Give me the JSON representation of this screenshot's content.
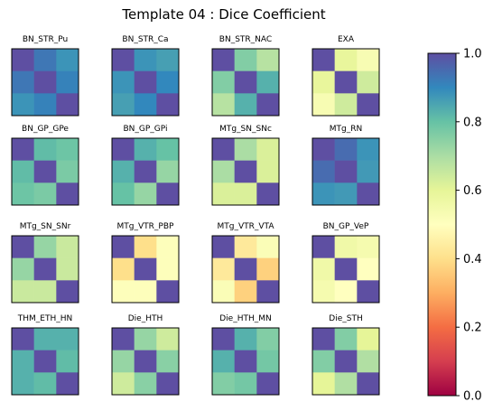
{
  "chart_data": {
    "type": "heatmap",
    "title": "Template 04 : Dice Coefficient",
    "colormap": "Spectral",
    "colorbar": {
      "range": [
        0.0,
        1.0
      ],
      "ticks": [
        "0.0",
        "0.2",
        "0.4",
        "0.6",
        "0.8",
        "1.0"
      ]
    },
    "panels": [
      {
        "label": "BN_STR_Pu",
        "values": [
          [
            1.0,
            0.93,
            0.88
          ],
          [
            0.93,
            1.0,
            0.91
          ],
          [
            0.88,
            0.91,
            1.0
          ]
        ]
      },
      {
        "label": "BN_STR_Ca",
        "values": [
          [
            1.0,
            0.88,
            0.86
          ],
          [
            0.88,
            1.0,
            0.9
          ],
          [
            0.86,
            0.9,
            1.0
          ]
        ]
      },
      {
        "label": "BN_STR_NAC",
        "values": [
          [
            1.0,
            0.76,
            0.68
          ],
          [
            0.76,
            1.0,
            0.83
          ],
          [
            0.68,
            0.83,
            1.0
          ]
        ]
      },
      {
        "label": "EXA",
        "values": [
          [
            1.0,
            0.59,
            0.53
          ],
          [
            0.59,
            1.0,
            0.64
          ],
          [
            0.53,
            0.64,
            1.0
          ]
        ]
      },
      {
        "label": "BN_GP_GPe",
        "values": [
          [
            1.0,
            0.81,
            0.79
          ],
          [
            0.81,
            1.0,
            0.77
          ],
          [
            0.79,
            0.77,
            1.0
          ]
        ]
      },
      {
        "label": "BN_GP_GPi",
        "values": [
          [
            1.0,
            0.83,
            0.8
          ],
          [
            0.83,
            1.0,
            0.73
          ],
          [
            0.8,
            0.73,
            1.0
          ]
        ]
      },
      {
        "label": "MTg_SN_SNc",
        "values": [
          [
            1.0,
            0.7,
            0.62
          ],
          [
            0.7,
            1.0,
            0.62
          ],
          [
            0.62,
            0.62,
            1.0
          ]
        ]
      },
      {
        "label": "MTg_RN",
        "values": [
          [
            1.0,
            0.95,
            0.88
          ],
          [
            0.95,
            1.0,
            0.87
          ],
          [
            0.88,
            0.87,
            1.0
          ]
        ]
      },
      {
        "label": "MTg_SN_SNr",
        "values": [
          [
            1.0,
            0.73,
            0.65
          ],
          [
            0.73,
            1.0,
            0.65
          ],
          [
            0.65,
            0.65,
            1.0
          ]
        ]
      },
      {
        "label": "MTg_VTR_PBP",
        "values": [
          [
            1.0,
            0.4,
            0.51
          ],
          [
            0.4,
            1.0,
            0.51
          ],
          [
            0.51,
            0.51,
            1.0
          ]
        ]
      },
      {
        "label": "MTg_VTR_VTA",
        "values": [
          [
            1.0,
            0.43,
            0.52
          ],
          [
            0.43,
            1.0,
            0.37
          ],
          [
            0.52,
            0.37,
            1.0
          ]
        ]
      },
      {
        "label": "BN_GP_VeP",
        "values": [
          [
            1.0,
            0.56,
            0.54
          ],
          [
            0.56,
            1.0,
            0.5
          ],
          [
            0.54,
            0.5,
            1.0
          ]
        ]
      },
      {
        "label": "THM_ETH_HN",
        "values": [
          [
            1.0,
            0.83,
            0.83
          ],
          [
            0.83,
            1.0,
            0.81
          ],
          [
            0.83,
            0.81,
            1.0
          ]
        ]
      },
      {
        "label": "Die_HTH",
        "values": [
          [
            1.0,
            0.73,
            0.64
          ],
          [
            0.73,
            1.0,
            0.75
          ],
          [
            0.64,
            0.75,
            1.0
          ]
        ]
      },
      {
        "label": "Die_HTH_MN",
        "values": [
          [
            1.0,
            0.83,
            0.76
          ],
          [
            0.83,
            1.0,
            0.78
          ],
          [
            0.76,
            0.78,
            1.0
          ]
        ]
      },
      {
        "label": "Die_STH",
        "values": [
          [
            1.0,
            0.76,
            0.6
          ],
          [
            0.76,
            1.0,
            0.69
          ],
          [
            0.6,
            0.69,
            1.0
          ]
        ]
      }
    ]
  }
}
